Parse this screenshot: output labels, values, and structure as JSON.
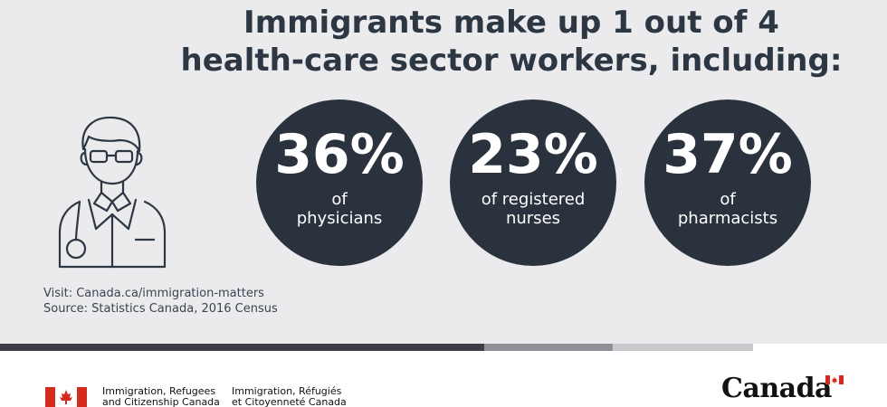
{
  "headline": {
    "line1": "Immigrants make up 1 out of 4",
    "line2": "health-care sector workers, including:"
  },
  "stats": [
    {
      "percent": "36%",
      "line1": "of",
      "line2": "physicians"
    },
    {
      "percent": "23%",
      "line1": "of registered",
      "line2": "nurses"
    },
    {
      "percent": "37%",
      "line1": "of",
      "line2": "pharmacists"
    }
  ],
  "footer": {
    "visit": "Visit: Canada.ca/immigration-matters",
    "source": "Source: Statistics Canada, 2016 Census"
  },
  "branding": {
    "dept_en_1": "Immigration, Refugees",
    "dept_en_2": "and Citizenship Canada",
    "dept_fr_1": "Immigration, Réfugiés",
    "dept_fr_2": "et Citoyenneté Canada",
    "wordmark": "Canada",
    "flag_icon": "canada-flag-icon"
  },
  "colors": {
    "background": "#ebebed",
    "circle": "#29323d",
    "headline": "#2d3743",
    "flag_red": "#d52b1e"
  }
}
